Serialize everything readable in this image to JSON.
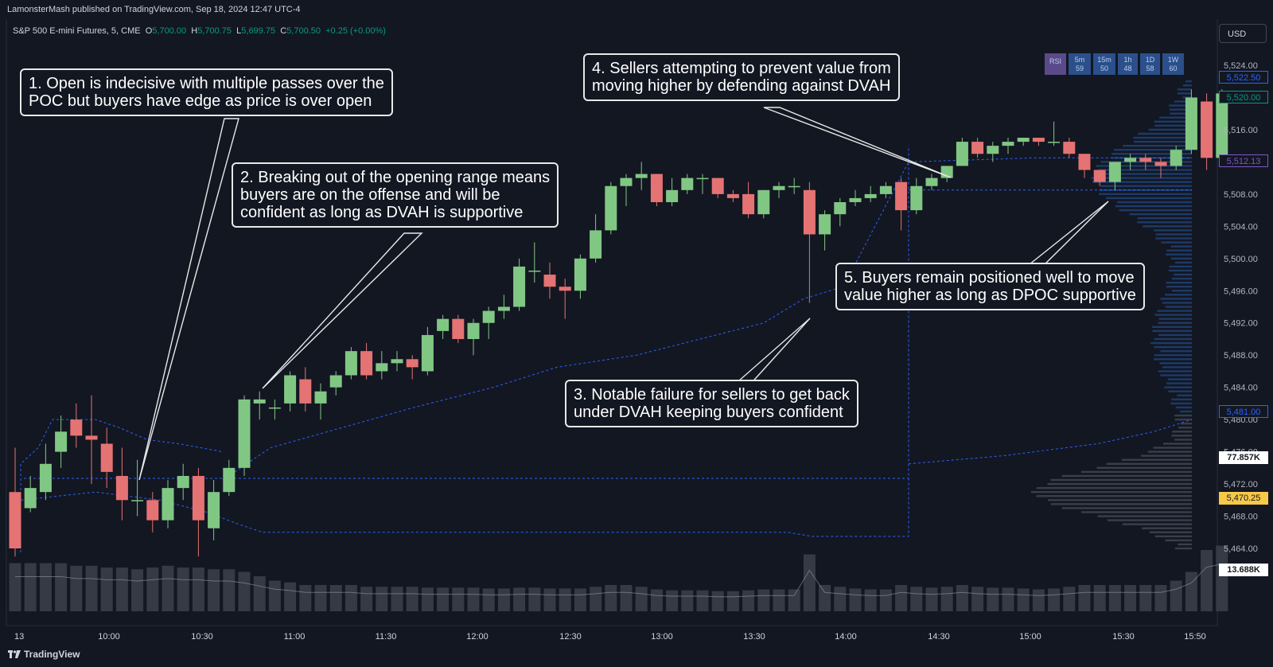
{
  "publisher_line": "LamonsterMash published on TradingView.com, Sep 18, 2024 12:47 UTC-4",
  "legend": {
    "symbol": "S&P 500 E-mini Futures, 5, CME",
    "o_label": "O",
    "o_value": "5,700.00",
    "h_label": "H",
    "h_value": "5,700.75",
    "l_label": "L",
    "l_value": "5,699.75",
    "c_label": "C",
    "c_value": "5,700.50",
    "change": "+0.25 (+0.00%)"
  },
  "currency": "USD",
  "indicator_buttons": [
    {
      "label": "RSI",
      "sub": ""
    },
    {
      "label": "5m",
      "sub": "59"
    },
    {
      "label": "15m",
      "sub": "50"
    },
    {
      "label": "1h",
      "sub": "48"
    },
    {
      "label": "1D",
      "sub": "58"
    },
    {
      "label": "1W",
      "sub": "60"
    }
  ],
  "annotations": [
    {
      "id": "a1",
      "text": "1. Open is indecisive with multiple passes over the\nPOC but buyers have edge as price is over open"
    },
    {
      "id": "a2",
      "text": "2. Breaking out of the opening range means\nbuyers are on the offense and will be\nconfident as long as DVAH is supportive"
    },
    {
      "id": "a3",
      "text": "3. Notable failure for sellers to get back\nunder DVAH keeping buyers confident"
    },
    {
      "id": "a4",
      "text": "4. Sellers attempting to prevent value from\nmoving higher by defending against DVAH"
    },
    {
      "id": "a5",
      "text": "5. Buyers remain positioned well to move\nvalue higher as long as DPOC supportive"
    }
  ],
  "price_axis": {
    "ticks": [
      "5,524.00",
      "5,516.00",
      "5,508.00",
      "5,504.00",
      "5,500.00",
      "5,496.00",
      "5,492.00",
      "5,488.00",
      "5,484.00",
      "5,480.00",
      "5,476.00",
      "5,472.00",
      "5,468.00",
      "5,464.00"
    ],
    "highlighted": [
      {
        "text": "5,522.50",
        "color": "#2962ff",
        "price": 5522.5
      },
      {
        "text": "5,520.00",
        "color": "#089981",
        "price": 5520.0
      },
      {
        "text": "5,512.13",
        "color": "#7e57c2",
        "price": 5512.13
      },
      {
        "text": "5,481.00",
        "color": "#2962ff",
        "price": 5481.0
      },
      {
        "text": "77.857K",
        "color": "#ffffff",
        "price": 5475.3
      },
      {
        "text": "5,470.25",
        "color": "#f7c948",
        "price": 5470.25
      },
      {
        "text": "13.688K",
        "color": "#ffffff",
        "price": 5461.3
      }
    ]
  },
  "time_axis": [
    "13",
    "10:00",
    "10:30",
    "11:00",
    "11:30",
    "12:00",
    "12:30",
    "13:00",
    "13:30",
    "14:00",
    "14:30",
    "15:00",
    "15:30",
    "15:50"
  ],
  "colors": {
    "background": "#131722",
    "up": "#81c784",
    "down": "#e57373",
    "value_area": "#2962ff",
    "volume": "#363a45",
    "annotation_border": "#e8e8e8"
  },
  "brand": "TradingView",
  "chart_data": {
    "type": "candlestick",
    "symbol": "S&P 500 E-mini Futures",
    "interval": "5",
    "ylim": [
      5461,
      5526
    ],
    "candles": [
      [
        5471.0,
        5464.0,
        5463.0,
        5476.5
      ],
      [
        5469.0,
        5471.5,
        5468.5,
        5473.0
      ],
      [
        5471.0,
        5474.5,
        5470.0,
        5477.0
      ],
      [
        5476.0,
        5478.5,
        5474.0,
        5480.5
      ],
      [
        5480.0,
        5478.0,
        5476.5,
        5482.0
      ],
      [
        5478.0,
        5477.5,
        5472.0,
        5483.0
      ],
      [
        5477.0,
        5473.5,
        5471.5,
        5479.0
      ],
      [
        5473.0,
        5470.0,
        5467.5,
        5476.5
      ],
      [
        5470.0,
        5470.0,
        5468.0,
        5475.0
      ],
      [
        5470.0,
        5467.5,
        5466.0,
        5471.0
      ],
      [
        5467.5,
        5471.5,
        5466.5,
        5472.5
      ],
      [
        5471.5,
        5473.0,
        5470.0,
        5474.5
      ],
      [
        5473.0,
        5467.5,
        5463.0,
        5474.0
      ],
      [
        5466.5,
        5471.0,
        5465.0,
        5472.5
      ],
      [
        5471.0,
        5474.0,
        5470.5,
        5475.0
      ],
      [
        5474.0,
        5482.5,
        5473.0,
        5483.0
      ],
      [
        5482.0,
        5482.5,
        5480.0,
        5483.5
      ],
      [
        5481.5,
        5481.5,
        5480.0,
        5482.5
      ],
      [
        5482.0,
        5485.5,
        5481.0,
        5486.0
      ],
      [
        5485.0,
        5482.0,
        5481.0,
        5486.5
      ],
      [
        5482.0,
        5483.5,
        5480.0,
        5484.5
      ],
      [
        5484.0,
        5485.5,
        5483.0,
        5486.0
      ],
      [
        5485.5,
        5488.5,
        5485.0,
        5489.0
      ],
      [
        5488.5,
        5485.5,
        5485.0,
        5489.5
      ],
      [
        5486.0,
        5487.0,
        5485.0,
        5488.5
      ],
      [
        5487.0,
        5487.5,
        5486.0,
        5488.5
      ],
      [
        5487.5,
        5486.5,
        5485.0,
        5488.0
      ],
      [
        5486.0,
        5490.5,
        5485.5,
        5491.5
      ],
      [
        5491.0,
        5492.5,
        5490.0,
        5493.0
      ],
      [
        5492.5,
        5490.0,
        5489.5,
        5493.0
      ],
      [
        5490.0,
        5492.0,
        5488.0,
        5492.5
      ],
      [
        5492.0,
        5493.5,
        5490.0,
        5494.0
      ],
      [
        5493.5,
        5494.0,
        5492.5,
        5495.5
      ],
      [
        5494.0,
        5499.0,
        5493.5,
        5500.0
      ],
      [
        5498.5,
        5498.5,
        5497.0,
        5502.0
      ],
      [
        5498.0,
        5496.5,
        5495.0,
        5499.5
      ],
      [
        5496.5,
        5496.0,
        5492.5,
        5497.5
      ],
      [
        5496.0,
        5500.0,
        5495.0,
        5500.5
      ],
      [
        5500.0,
        5503.5,
        5499.5,
        5505.5
      ],
      [
        5503.5,
        5509.0,
        5503.0,
        5509.5
      ],
      [
        5509.0,
        5510.0,
        5506.5,
        5510.5
      ],
      [
        5510.0,
        5510.5,
        5508.5,
        5512.0
      ],
      [
        5510.5,
        5507.0,
        5506.5,
        5510.5
      ],
      [
        5507.0,
        5508.5,
        5506.5,
        5510.0
      ],
      [
        5508.5,
        5510.0,
        5508.0,
        5510.5
      ],
      [
        5510.0,
        5510.0,
        5508.0,
        5510.5
      ],
      [
        5510.0,
        5508.0,
        5507.5,
        5510.0
      ],
      [
        5508.0,
        5507.5,
        5507.0,
        5508.5
      ],
      [
        5508.0,
        5505.5,
        5505.0,
        5509.5
      ],
      [
        5505.5,
        5508.5,
        5505.0,
        5508.5
      ],
      [
        5508.5,
        5509.0,
        5507.5,
        5509.5
      ],
      [
        5509.0,
        5509.0,
        5508.0,
        5510.0
      ],
      [
        5508.5,
        5503.0,
        5494.5,
        5509.5
      ],
      [
        5503.0,
        5505.5,
        5501.0,
        5506.0
      ],
      [
        5505.5,
        5507.0,
        5504.0,
        5507.5
      ],
      [
        5507.0,
        5507.5,
        5506.5,
        5508.5
      ],
      [
        5507.5,
        5508.0,
        5507.0,
        5509.0
      ],
      [
        5508.0,
        5509.0,
        5507.5,
        5509.5
      ],
      [
        5509.5,
        5506.0,
        5503.5,
        5510.0
      ],
      [
        5506.0,
        5509.0,
        5505.5,
        5510.0
      ],
      [
        5509.0,
        5510.0,
        5508.5,
        5510.5
      ],
      [
        5510.0,
        5511.5,
        5509.5,
        5511.5
      ],
      [
        5511.5,
        5514.5,
        5511.5,
        5515.0
      ],
      [
        5514.5,
        5513.0,
        5512.5,
        5515.0
      ],
      [
        5513.0,
        5514.0,
        5512.0,
        5514.5
      ],
      [
        5514.0,
        5514.5,
        5513.0,
        5515.0
      ],
      [
        5514.5,
        5515.0,
        5514.0,
        5515.0
      ],
      [
        5515.0,
        5514.5,
        5514.0,
        5515.0
      ],
      [
        5514.5,
        5514.5,
        5514.0,
        5517.0
      ],
      [
        5514.5,
        5513.0,
        5512.5,
        5515.0
      ],
      [
        5513.0,
        5511.0,
        5510.0,
        5513.0
      ],
      [
        5511.0,
        5509.5,
        5509.0,
        5511.0
      ],
      [
        5509.5,
        5512.0,
        5508.5,
        5512.0
      ],
      [
        5512.0,
        5512.5,
        5511.0,
        5513.0
      ],
      [
        5512.5,
        5512.0,
        5511.0,
        5513.0
      ],
      [
        5512.0,
        5511.5,
        5510.0,
        5512.5
      ],
      [
        5511.5,
        5513.5,
        5511.0,
        5514.0
      ],
      [
        5513.5,
        5520.0,
        5513.0,
        5521.0
      ],
      [
        5519.5,
        5512.5,
        5511.0,
        5520.5
      ],
      [
        5512.5,
        5520.5,
        5512.0,
        5521.0
      ]
    ],
    "volume": [
      0.55,
      0.55,
      0.55,
      0.55,
      0.52,
      0.52,
      0.5,
      0.5,
      0.48,
      0.5,
      0.52,
      0.5,
      0.5,
      0.48,
      0.48,
      0.45,
      0.4,
      0.35,
      0.33,
      0.3,
      0.3,
      0.3,
      0.3,
      0.28,
      0.28,
      0.28,
      0.28,
      0.27,
      0.27,
      0.27,
      0.27,
      0.26,
      0.26,
      0.27,
      0.27,
      0.26,
      0.26,
      0.26,
      0.28,
      0.3,
      0.3,
      0.28,
      0.25,
      0.24,
      0.24,
      0.24,
      0.23,
      0.23,
      0.24,
      0.25,
      0.25,
      0.25,
      0.65,
      0.3,
      0.28,
      0.26,
      0.25,
      0.25,
      0.3,
      0.28,
      0.27,
      0.28,
      0.3,
      0.28,
      0.27,
      0.27,
      0.26,
      0.25,
      0.26,
      0.28,
      0.3,
      0.3,
      0.3,
      0.3,
      0.3,
      0.3,
      0.35,
      0.45,
      0.7,
      0.75
    ],
    "x_labels": [
      "13",
      "10:00",
      "10:30",
      "11:00",
      "11:30",
      "12:00",
      "12:30",
      "13:00",
      "13:30",
      "14:00",
      "14:30",
      "15:00",
      "15:30",
      "15:50"
    ]
  }
}
